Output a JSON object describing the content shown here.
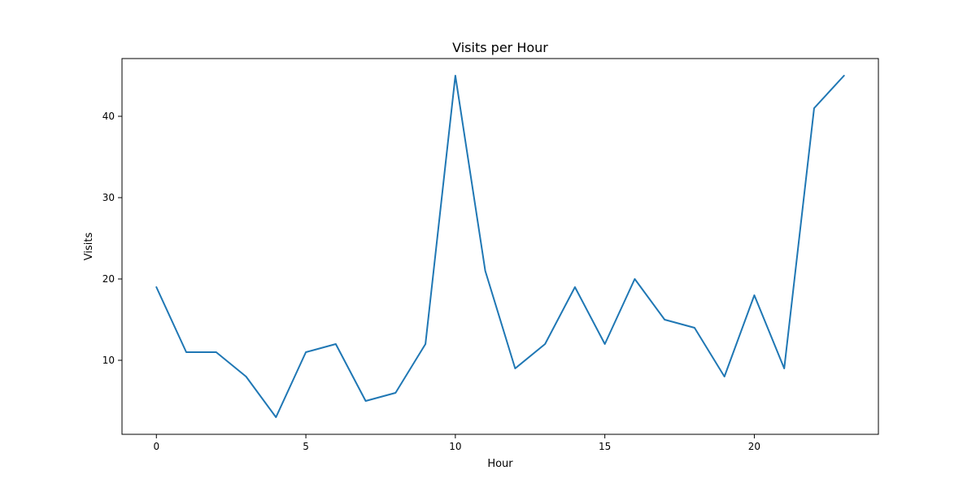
{
  "chart_data": {
    "type": "line",
    "title": "Visits per Hour",
    "xlabel": "Hour",
    "ylabel": "Visits",
    "x": [
      0,
      1,
      2,
      3,
      4,
      5,
      6,
      7,
      8,
      9,
      10,
      11,
      12,
      13,
      14,
      15,
      16,
      17,
      18,
      19,
      20,
      21,
      22,
      23
    ],
    "series": [
      {
        "color": "#1f77b4",
        "values": [
          19,
          11,
          11,
          8,
          3,
          11,
          12,
          5,
          6,
          12,
          45,
          21,
          9,
          12,
          19,
          12,
          20,
          15,
          14,
          8,
          18,
          9,
          41,
          45
        ]
      }
    ],
    "xlim": [
      -1.15,
      24.15
    ],
    "ylim": [
      0.9,
      47.1
    ],
    "xticks": [
      0,
      5,
      10,
      15,
      20
    ],
    "yticks": [
      10,
      20,
      30,
      40
    ],
    "grid": false,
    "legend": "none"
  }
}
